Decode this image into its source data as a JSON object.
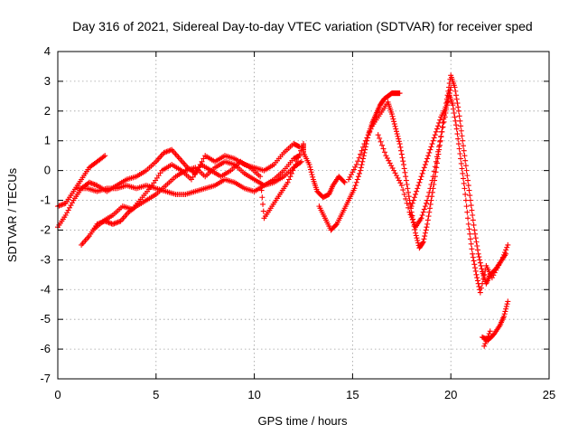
{
  "chart_data": {
    "type": "scatter",
    "title": "Day 316 of 2021, Sidereal Day-to-day VTEC variation (SDTVAR) for receiver sped",
    "xlabel": "GPS time / hours",
    "ylabel": "SDTVAR / TECUs",
    "xlim": [
      0,
      25
    ],
    "ylim": [
      -7,
      4
    ],
    "xticks": [
      "0",
      "5",
      "10",
      "15",
      "20",
      "25"
    ],
    "yticks": [
      "-7",
      "-6",
      "-5",
      "-4",
      "-3",
      "-2",
      "-1",
      "0",
      "1",
      "2",
      "3",
      "4"
    ],
    "grid": true,
    "marker": "plus",
    "color": "#ff0000",
    "series": [
      {
        "points": [
          [
            0.0,
            -1.2
          ],
          [
            0.4,
            -1.1
          ],
          [
            0.8,
            -0.7
          ],
          [
            1.2,
            -0.3
          ],
          [
            1.6,
            0.1
          ],
          [
            2.0,
            0.3
          ],
          [
            2.4,
            0.5
          ],
          [
            1.0,
            -0.6
          ],
          [
            1.5,
            -0.6
          ],
          [
            2.0,
            -0.7
          ],
          [
            2.5,
            -0.6
          ],
          [
            3.0,
            -0.6
          ],
          [
            3.5,
            -0.5
          ],
          [
            4.0,
            -0.6
          ],
          [
            4.5,
            -0.5
          ],
          [
            5.0,
            -0.6
          ],
          [
            5.5,
            -0.7
          ],
          [
            6.0,
            -0.8
          ],
          [
            6.5,
            -0.8
          ],
          [
            7.0,
            -0.7
          ],
          [
            7.5,
            -0.6
          ],
          [
            8.0,
            -0.5
          ],
          [
            8.5,
            -0.3
          ],
          [
            9.0,
            -0.4
          ],
          [
            9.5,
            -0.6
          ],
          [
            10.0,
            -0.7
          ],
          [
            10.5,
            -0.5
          ],
          [
            11.0,
            -0.4
          ],
          [
            11.5,
            -0.2
          ],
          [
            12.0,
            0.1
          ],
          [
            12.4,
            0.3
          ],
          [
            0.0,
            -1.9
          ],
          [
            0.4,
            -1.5
          ],
          [
            0.8,
            -1.0
          ],
          [
            1.2,
            -0.6
          ],
          [
            1.6,
            -0.4
          ],
          [
            2.0,
            -0.5
          ],
          [
            2.5,
            -0.7
          ],
          [
            3.0,
            -0.5
          ],
          [
            3.5,
            -0.3
          ],
          [
            4.0,
            -0.2
          ],
          [
            4.5,
            0.0
          ],
          [
            5.0,
            0.3
          ],
          [
            5.4,
            0.6
          ],
          [
            5.8,
            0.7
          ],
          [
            6.2,
            0.4
          ],
          [
            6.6,
            0.1
          ],
          [
            7.0,
            -0.1
          ],
          [
            7.5,
            0.5
          ],
          [
            8.0,
            0.3
          ],
          [
            8.5,
            0.5
          ],
          [
            9.0,
            0.4
          ],
          [
            9.5,
            0.2
          ],
          [
            10.0,
            0.1
          ],
          [
            10.5,
            0.0
          ],
          [
            11.0,
            0.2
          ],
          [
            11.5,
            0.6
          ],
          [
            12.0,
            0.9
          ],
          [
            12.3,
            0.8
          ],
          [
            1.2,
            -2.5
          ],
          [
            1.6,
            -2.2
          ],
          [
            2.0,
            -1.8
          ],
          [
            2.4,
            -1.7
          ],
          [
            2.8,
            -1.8
          ],
          [
            3.2,
            -1.7
          ],
          [
            3.6,
            -1.4
          ],
          [
            4.0,
            -1.2
          ],
          [
            4.5,
            -1.0
          ],
          [
            5.0,
            -0.8
          ],
          [
            5.5,
            -0.5
          ],
          [
            6.0,
            -0.2
          ],
          [
            6.5,
            0.0
          ],
          [
            7.0,
            0.1
          ],
          [
            7.5,
            -0.2
          ],
          [
            8.0,
            0.1
          ],
          [
            8.5,
            0.3
          ],
          [
            9.0,
            0.2
          ],
          [
            9.5,
            -0.1
          ],
          [
            10.0,
            -0.3
          ],
          [
            10.5,
            -0.5
          ],
          [
            11.0,
            -0.3
          ],
          [
            11.5,
            0.0
          ],
          [
            12.0,
            0.4
          ],
          [
            12.3,
            0.5
          ],
          [
            1.8,
            -2.0
          ],
          [
            2.3,
            -1.7
          ],
          [
            2.8,
            -1.5
          ],
          [
            3.3,
            -1.2
          ],
          [
            3.8,
            -1.3
          ],
          [
            4.3,
            -0.9
          ],
          [
            4.8,
            -0.5
          ],
          [
            5.3,
            0.0
          ],
          [
            5.8,
            0.2
          ],
          [
            6.3,
            0.0
          ],
          [
            6.8,
            -0.3
          ],
          [
            7.3,
            0.2
          ],
          [
            7.8,
            0.0
          ],
          [
            8.3,
            -0.2
          ],
          [
            8.8,
            0.0
          ],
          [
            9.3,
            0.3
          ],
          [
            9.8,
            0.1
          ],
          [
            10.3,
            -0.2
          ],
          [
            10.5,
            -1.6
          ],
          [
            10.9,
            -1.2
          ],
          [
            11.3,
            -0.8
          ],
          [
            11.7,
            -0.4
          ],
          [
            12.1,
            0.2
          ],
          [
            12.5,
            0.9
          ],
          [
            12.5,
            0.6
          ],
          [
            12.8,
            0.2
          ],
          [
            13.0,
            -0.3
          ],
          [
            13.2,
            -0.7
          ],
          [
            13.5,
            -0.9
          ],
          [
            13.8,
            -0.8
          ],
          [
            14.0,
            -0.5
          ],
          [
            14.3,
            -0.2
          ],
          [
            14.6,
            -0.4
          ],
          [
            13.3,
            -1.2
          ],
          [
            13.6,
            -1.6
          ],
          [
            13.9,
            -2.0
          ],
          [
            14.2,
            -1.8
          ],
          [
            14.5,
            -1.4
          ],
          [
            14.8,
            -1.0
          ],
          [
            15.1,
            -0.6
          ],
          [
            15.4,
            0.0
          ],
          [
            15.6,
            0.6
          ],
          [
            15.8,
            1.2
          ],
          [
            16.0,
            1.6
          ],
          [
            16.2,
            1.9
          ],
          [
            16.4,
            2.2
          ],
          [
            16.6,
            2.4
          ],
          [
            16.8,
            2.5
          ],
          [
            17.0,
            2.6
          ],
          [
            17.2,
            2.6
          ],
          [
            17.4,
            2.6
          ],
          [
            14.8,
            -0.3
          ],
          [
            15.2,
            0.2
          ],
          [
            15.6,
            0.9
          ],
          [
            16.0,
            1.5
          ],
          [
            16.4,
            1.9
          ],
          [
            16.8,
            2.3
          ],
          [
            17.0,
            1.9
          ],
          [
            17.2,
            1.4
          ],
          [
            17.4,
            0.9
          ],
          [
            17.6,
            0.2
          ],
          [
            17.8,
            -0.6
          ],
          [
            18.0,
            -1.4
          ],
          [
            18.2,
            -2.1
          ],
          [
            18.4,
            -2.6
          ],
          [
            18.6,
            -2.4
          ],
          [
            18.8,
            -1.8
          ],
          [
            19.0,
            -1.0
          ],
          [
            19.2,
            -0.2
          ],
          [
            19.4,
            0.7
          ],
          [
            19.6,
            1.6
          ],
          [
            19.8,
            2.4
          ],
          [
            20.0,
            3.2
          ],
          [
            20.2,
            2.8
          ],
          [
            20.4,
            2.0
          ],
          [
            20.6,
            1.0
          ],
          [
            20.8,
            0.0
          ],
          [
            21.0,
            -1.0
          ],
          [
            21.2,
            -2.0
          ],
          [
            21.4,
            -2.8
          ],
          [
            21.6,
            -3.4
          ],
          [
            21.8,
            -3.8
          ],
          [
            22.0,
            -3.5
          ],
          [
            22.3,
            -3.3
          ],
          [
            22.6,
            -3.0
          ],
          [
            22.9,
            -2.5
          ],
          [
            16.3,
            1.2
          ],
          [
            16.7,
            0.5
          ],
          [
            17.1,
            0.0
          ],
          [
            17.5,
            -0.5
          ],
          [
            17.9,
            -1.4
          ],
          [
            18.2,
            -1.9
          ],
          [
            18.5,
            -1.6
          ],
          [
            18.8,
            -1.0
          ],
          [
            19.1,
            -0.2
          ],
          [
            19.4,
            0.8
          ],
          [
            19.7,
            1.8
          ],
          [
            19.9,
            2.6
          ],
          [
            20.1,
            2.2
          ],
          [
            20.3,
            1.4
          ],
          [
            20.5,
            0.4
          ],
          [
            20.7,
            -0.6
          ],
          [
            20.9,
            -1.8
          ],
          [
            21.1,
            -2.8
          ],
          [
            21.3,
            -3.5
          ],
          [
            21.5,
            -4.1
          ],
          [
            21.8,
            -3.2
          ],
          [
            22.1,
            -3.6
          ],
          [
            22.5,
            -3.1
          ],
          [
            22.8,
            -2.8
          ],
          [
            18.0,
            -1.2
          ],
          [
            18.3,
            -0.6
          ],
          [
            18.6,
            0.0
          ],
          [
            18.9,
            0.6
          ],
          [
            19.2,
            1.2
          ],
          [
            19.5,
            1.8
          ],
          [
            19.8,
            2.2
          ],
          [
            20.0,
            2.8
          ],
          [
            21.6,
            -5.6
          ],
          [
            21.9,
            -5.7
          ],
          [
            22.2,
            -5.5
          ],
          [
            22.5,
            -5.2
          ],
          [
            22.7,
            -4.9
          ],
          [
            22.9,
            -4.4
          ],
          [
            21.7,
            -5.9
          ],
          [
            22.0,
            -5.4
          ]
        ]
      }
    ]
  }
}
